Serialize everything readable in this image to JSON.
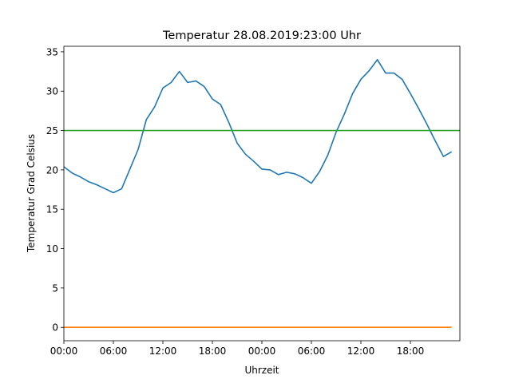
{
  "chart_data": {
    "type": "line",
    "title": "Temperatur 28.08.2019:23:00 Uhr",
    "xlabel": "Uhrzeit",
    "ylabel": "Temperatur Grad Celsius",
    "xlim": [
      0,
      48
    ],
    "ylim": [
      -1.7,
      35.7
    ],
    "x_tick_values": [
      0,
      6,
      12,
      18,
      24,
      30,
      36,
      42
    ],
    "x_tick_labels": [
      "00:00",
      "06:00",
      "12:00",
      "18:00",
      "00:00",
      "06:00",
      "12:00",
      "18:00"
    ],
    "y_tick_values": [
      0,
      5,
      10,
      15,
      20,
      25,
      30,
      35
    ],
    "y_tick_labels": [
      "0",
      "5",
      "10",
      "15",
      "20",
      "25",
      "30",
      "35"
    ],
    "grid": false,
    "legend": "none",
    "series": [
      {
        "color": "#1f77b4",
        "x": [
          0,
          1,
          2,
          3,
          4,
          5,
          6,
          7,
          8,
          9,
          10,
          11,
          12,
          13,
          14,
          15,
          16,
          17,
          18,
          19,
          20,
          21,
          22,
          23,
          24,
          25,
          26,
          27,
          28,
          29,
          30,
          31,
          32,
          33,
          34,
          35,
          36,
          37,
          38,
          39,
          40,
          41,
          42,
          43,
          44,
          45,
          46,
          47
        ],
        "y": [
          20.4,
          19.6,
          19.1,
          18.5,
          18.1,
          17.6,
          17.1,
          17.6,
          20.1,
          22.6,
          26.4,
          28.0,
          30.4,
          31.1,
          32.5,
          31.1,
          31.3,
          30.6,
          29.0,
          28.3,
          26.0,
          23.4,
          22.0,
          21.1,
          20.1,
          20.0,
          19.4,
          19.7,
          19.5,
          19.0,
          18.3,
          19.8,
          21.9,
          24.8,
          27.1,
          29.7,
          31.5,
          32.6,
          34.0,
          32.3,
          32.3,
          31.5,
          29.7,
          27.8,
          25.8,
          23.7,
          21.7,
          22.3
        ]
      },
      {
        "color": "#ff7f0e",
        "x": [
          0,
          47
        ],
        "y": [
          0,
          0
        ]
      },
      {
        "color": "#2ca02c",
        "x": [
          0,
          48
        ],
        "y": [
          25,
          25
        ]
      }
    ]
  }
}
